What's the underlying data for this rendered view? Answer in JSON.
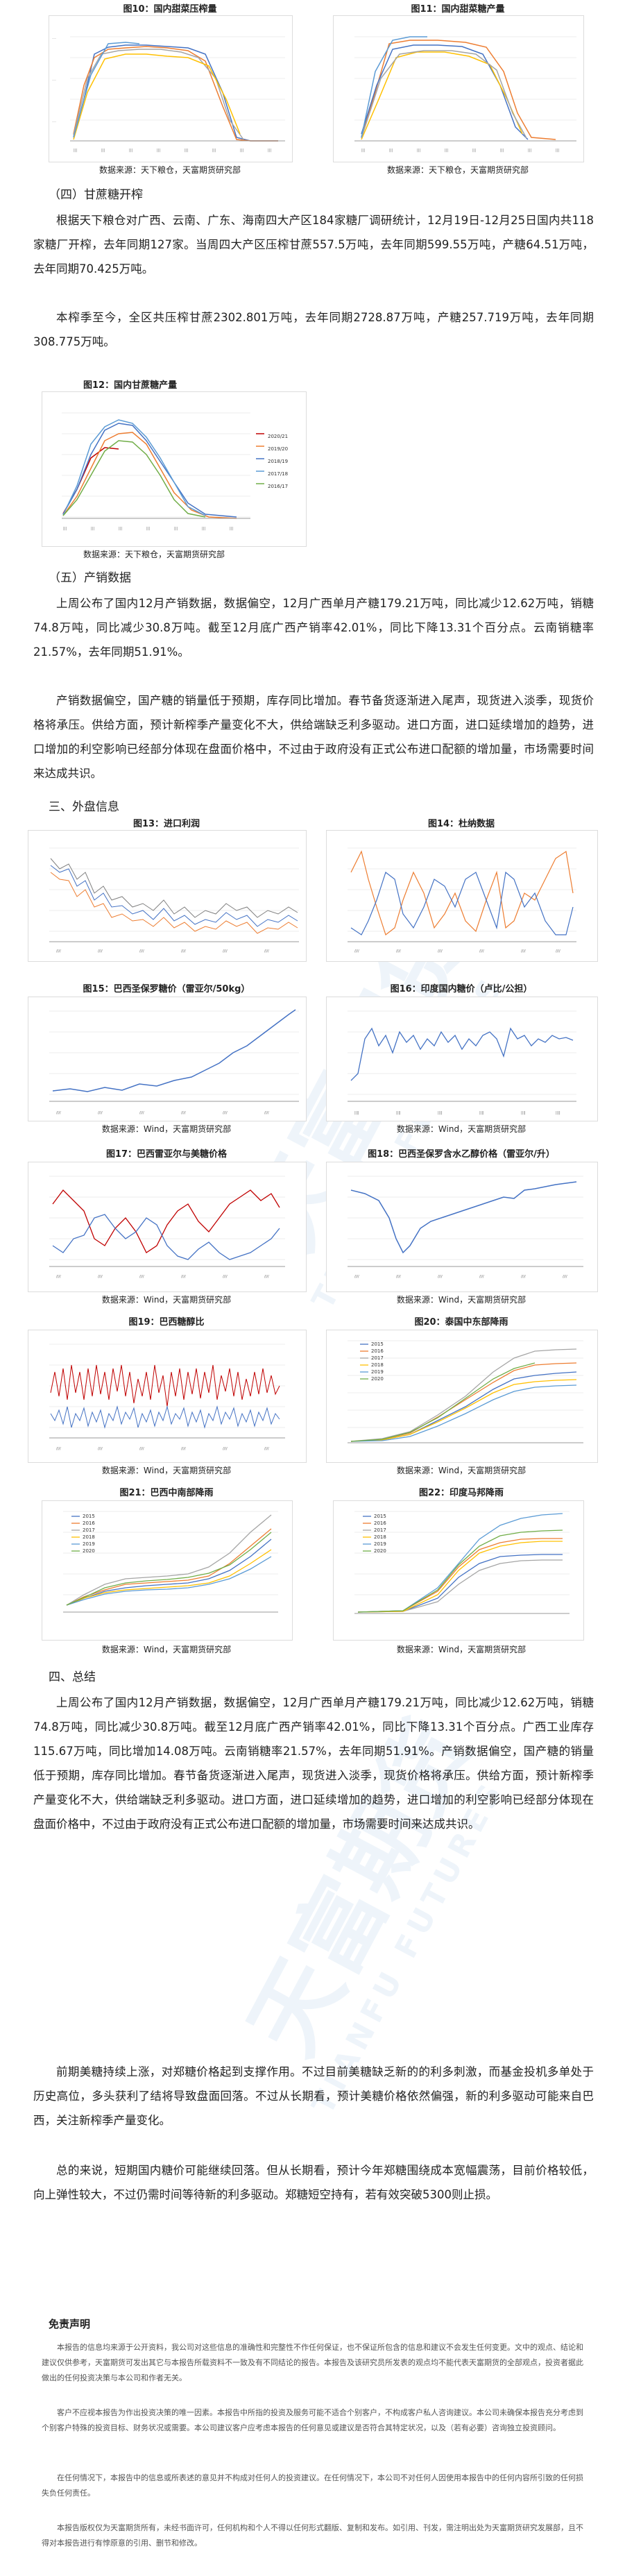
{
  "figures": {
    "fig10": {
      "title": "图10：国内甜菜压榨量",
      "source": "数据来源：天下粮仓，天富期货研究部"
    },
    "fig11": {
      "title": "图11：国内甜菜糖产量",
      "source": "数据来源：天下粮仓，天富期货研究部"
    },
    "fig12": {
      "title": "图12：国内甘蔗糖产量",
      "source": "数据来源：天下粮仓，天富期货研究部",
      "legend": [
        "2020/21",
        "2019/20",
        "2018/19",
        "2017/18",
        "2016/17"
      ]
    },
    "fig13": {
      "title": "图13：进口利润",
      "source": "数据来源：Wind，天富期货研究部"
    },
    "fig14": {
      "title": "图14：杜纳数据",
      "source": "数据来源：Wind，天富期货研究部"
    },
    "fig15": {
      "title": "图15：巴西圣保罗糖价（雷亚尔/50kg）",
      "source": "数据来源：Wind，天富期货研究部"
    },
    "fig16": {
      "title": "图16：印度国内糖价（卢比/公担）",
      "source": "数据来源：Wind，天富期货研究部"
    },
    "fig17": {
      "title": "图17：巴西雷亚尔与美糖价格",
      "source": "数据来源：Wind，天富期货研究部"
    },
    "fig18": {
      "title": "图18：巴西圣保罗含水乙醇价格（雷亚尔/升）",
      "source": "数据来源：Wind，天富期货研究部"
    },
    "fig19": {
      "title": "图19：巴西糖醇比",
      "source": "数据来源：Wind，天富期货研究部"
    },
    "fig20": {
      "title": "图20：泰国中东部降雨",
      "source": "数据来源：Wind，天富期货研究部",
      "legend": [
        "2015",
        "2016",
        "2017",
        "2018",
        "2019",
        "2020"
      ]
    },
    "fig21": {
      "title": "图21：巴西中南部降雨",
      "source": "数据来源：Wind，天富期货研究部",
      "legend": [
        "2015",
        "2016",
        "2017",
        "2018",
        "2019",
        "2020"
      ]
    },
    "fig22": {
      "title": "图22：印度马邦降雨",
      "source": "数据来源：Wind，天富期货研究部",
      "legend": [
        "2015",
        "2016",
        "2017",
        "2018",
        "2019",
        "2020"
      ]
    }
  },
  "sections": {
    "s4": "（四）甘蔗糖开榨",
    "s5": "（五）产销数据",
    "s3": "三、外盘信息",
    "s4b": "四、总结"
  },
  "paragraphs": {
    "p1": "根据天下粮仓对广西、云南、广东、海南四大产区184家糖厂调研统计，12月19日-12月25日国内共118家糖厂开榨，去年同期127家。当周四大产区压榨甘蔗557.5万吨，去年同期599.55万吨，产糖64.51万吨，去年同期70.425万吨。",
    "p2": "本榨季至今，全区共压榨甘蔗2302.801万吨，去年同期2728.87万吨，产糖257.719万吨，去年同期308.775万吨。",
    "p3": "上周公布了国内12月产销数据，数据偏空，12月广西单月产糖179.21万吨，同比减少12.62万吨，销糖74.8万吨，同比减少30.8万吨。截至12月底广西产销率42.01%，同比下降13.31个百分点。云南销糖率21.57%，去年同期51.91%。",
    "p4": "产销数据偏空，国产糖的销量低于预期，库存同比增加。春节备货逐渐进入尾声，现货进入淡季，现货价格将承压。供给方面，预计新榨季产量变化不大，供给端缺乏利多驱动。进口方面，进口延续增加的趋势，进口增加的利空影响已经部分体现在盘面价格中，不过由于政府没有正式公布进口配额的增加量，市场需要时间来达成共识。",
    "p5": "上周公布了国内12月产销数据，数据偏空，12月广西单月产糖179.21万吨，同比减少12.62万吨，销糖74.8万吨，同比减少30.8万吨。截至12月底广西产销率42.01%，同比下降13.31个百分点。广西工业库存115.67万吨，同比增加14.08万吨。云南销糖率21.57%，去年同期51.91%。产销数据偏空，国产糖的销量低于预期，库存同比增加。春节备货逐渐进入尾声，现货进入淡季，现货价格将承压。供给方面，预计新榨季产量变化不大，供给端缺乏利多驱动。进口方面，进口延续增加的趋势，进口增加的利空影响已经部分体现在盘面价格中，不过由于政府没有正式公布进口配额的增加量，市场需要时间来达成共识。",
    "p6": "前期美糖持续上涨，对郑糖价格起到支撑作用。不过目前美糖缺乏新的的利多刺激，而基金投机多单处于历史高位，多头获利了结将导致盘面回落。不过从长期看，预计美糖价格依然偏强，新的利多驱动可能来自巴西，关注新榨季产量变化。",
    "p7": "总的来说，短期国内糖价可能继续回落。但从长期看，预计今年郑糖围绕成本宽幅震荡，目前价格较低，向上弹性较大，不过仍需时间等待新的利多驱动。郑糖短空持有，若有效突破5300则止损。"
  },
  "disclaimer": {
    "title": "免责声明",
    "d1": "本报告的信息均来源于公开资料，我公司对这些信息的准确性和完整性不作任何保证，也不保证所包含的信息和建议不会发生任何变更。文中的观点、结论和建议仅供参考，天富期货可发出其它与本报告所载资料不一致及有不同结论的报告。本报告及该研究员所发表的观点均不能代表天富期货的全部观点，投资者据此做出的任何投资决策与本公司和作者无关。",
    "d2": "客户不应视本报告为作出投资决策的唯一因素。本报告中所指的投资及服务可能不适合个别客户，不构成客户私人咨询建议。本公司未确保本报告充分考虑到个别客户特殊的投资目标、财务状况或需要。本公司建议客户应考虑本报告的任何意见或建议是否符合其特定状况，以及（若有必要）咨询独立投资顾问。",
    "d3": "在任何情况下，本报告中的信息或所表述的意见并不构成对任何人的投资建议。在任何情况下，本公司不对任何人因使用本报告中的任何内容所引致的任何损失负任何责任。",
    "d4": "本报告版权仅为天富期货所有，未经书面许可，任何机构和个人不得以任何形式翻版、复制和发布。如引用、刊发，需注明出处为天富期货研究发展部，且不得对本报告进行有悖原意的引用、删节和修改。"
  },
  "watermark": {
    "main": "天富期货",
    "sub": "TIANFU FUTURES"
  }
}
